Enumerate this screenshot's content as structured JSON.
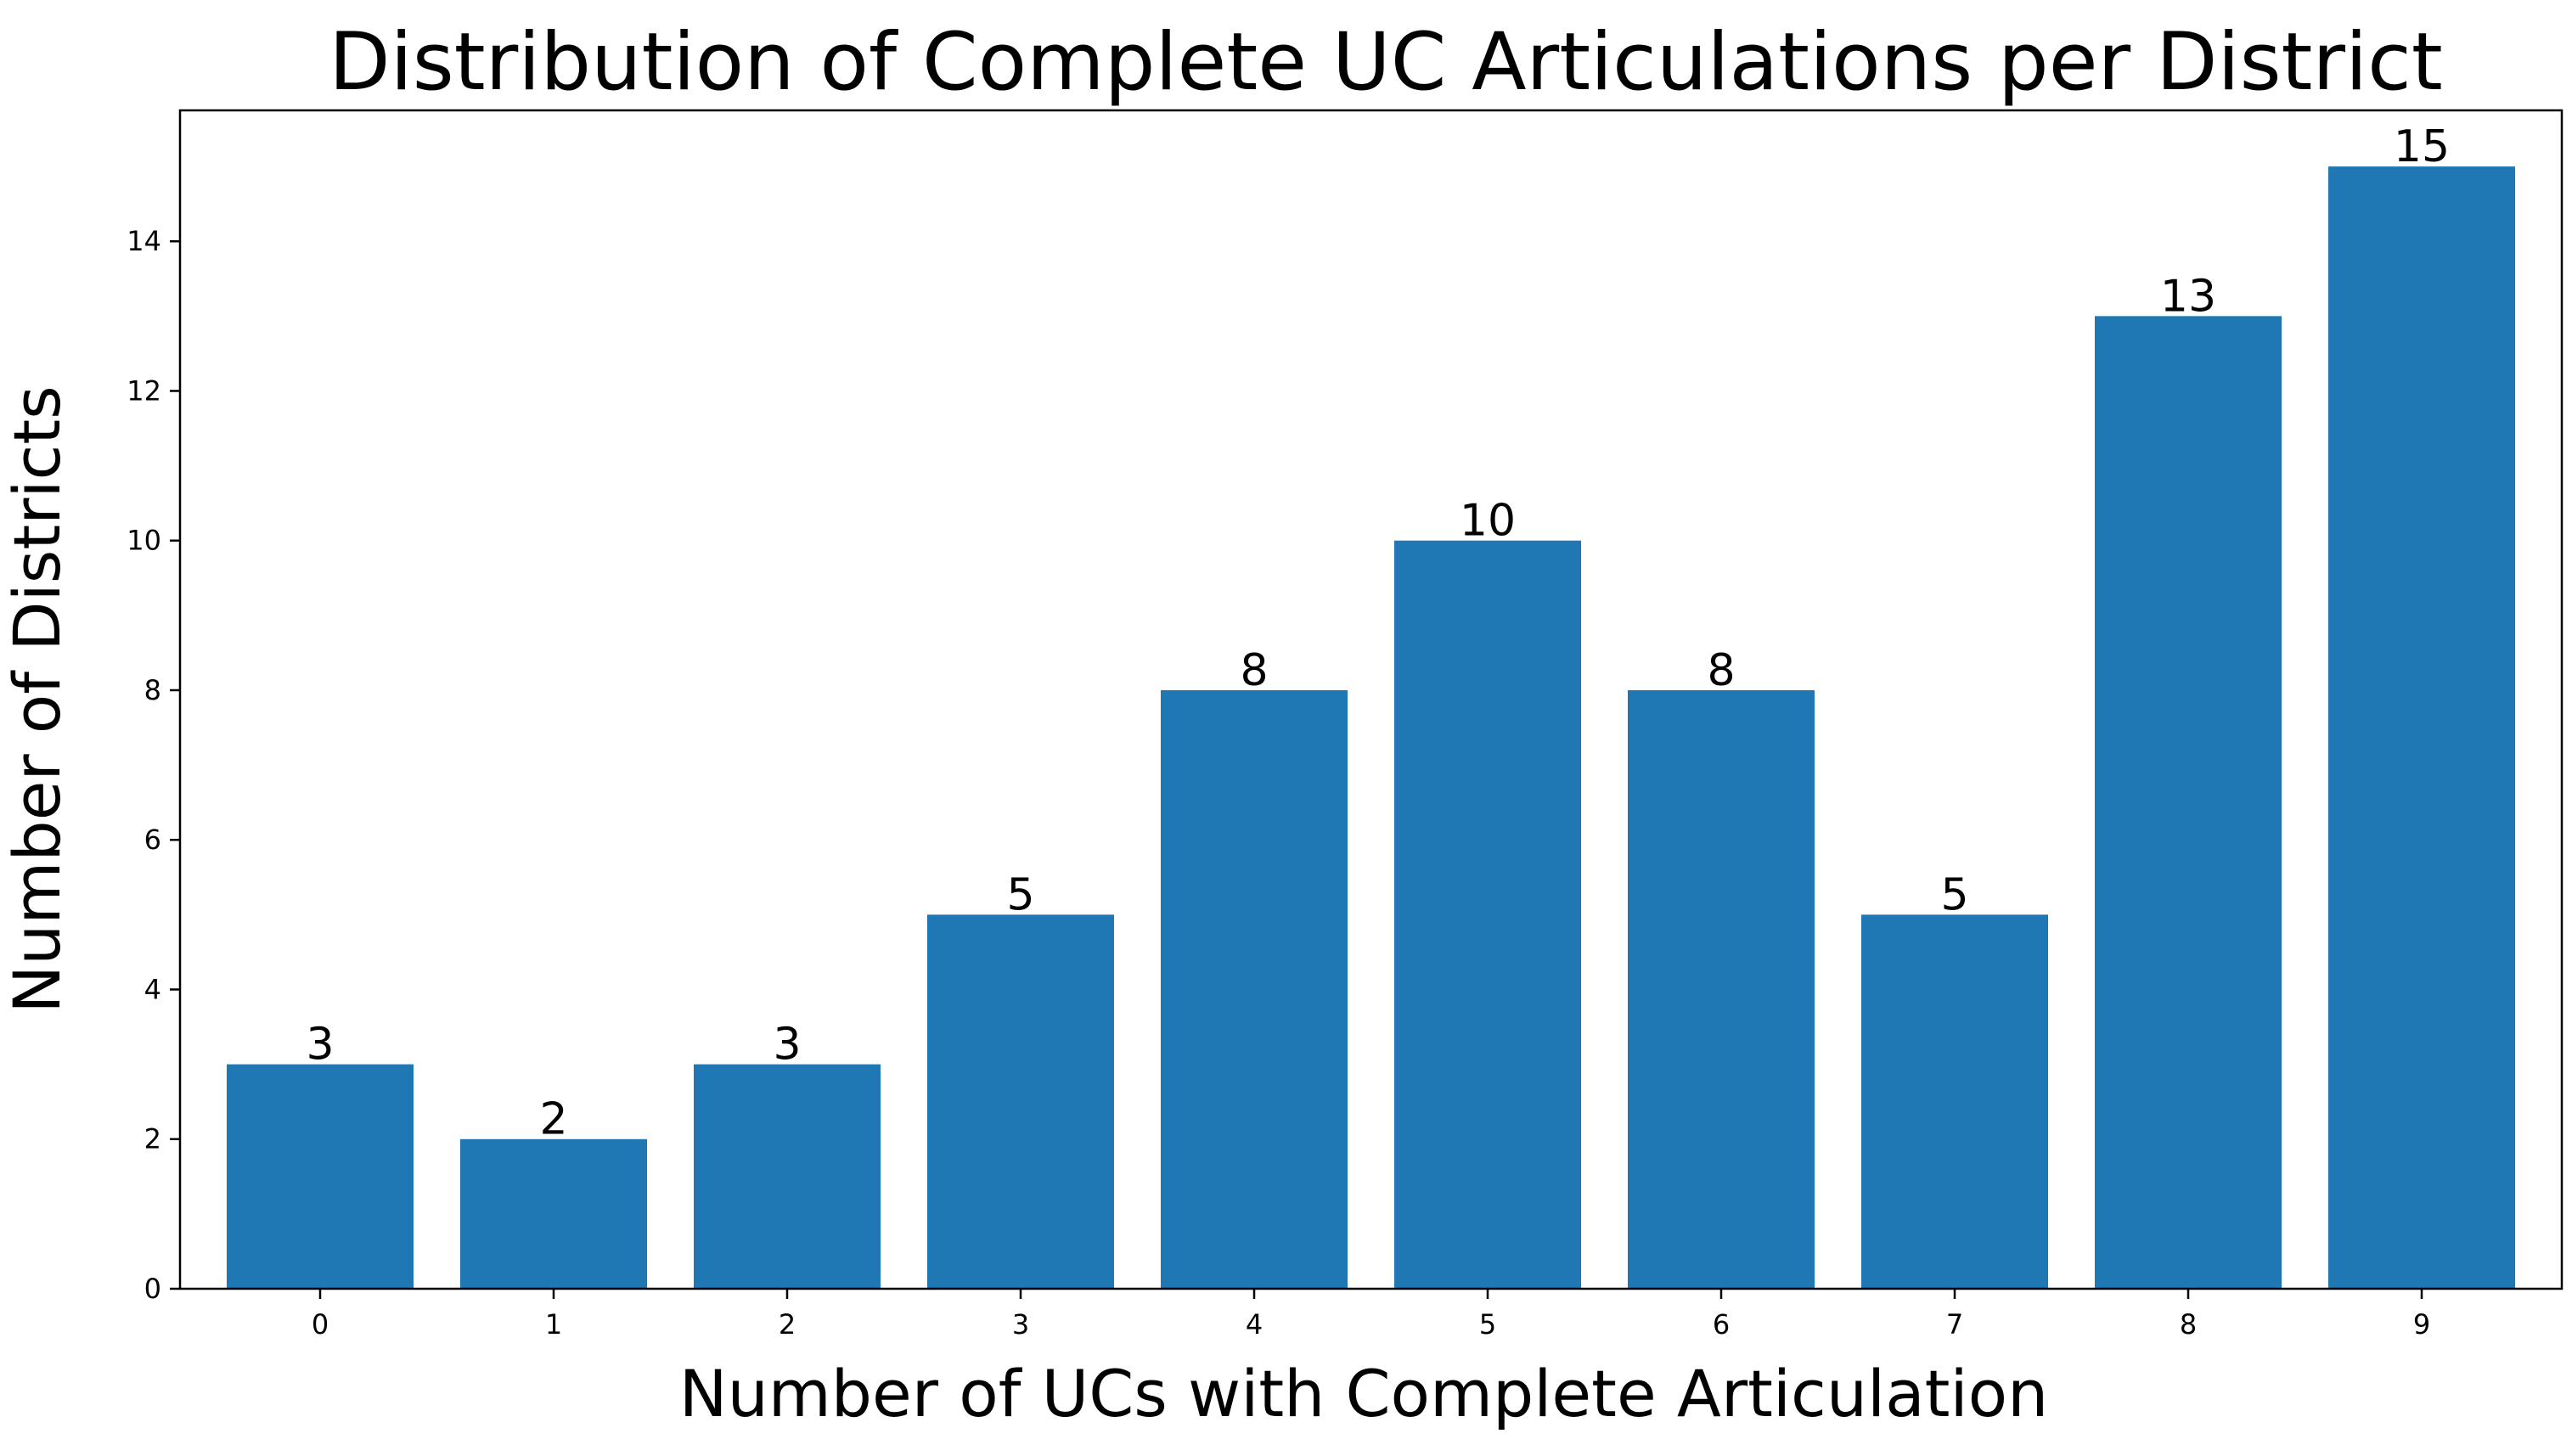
{
  "chart_data": {
    "type": "bar",
    "title": "Distribution of Complete UC Articulations per District",
    "xlabel": "Number of UCs with Complete Articulation",
    "ylabel": "Number of Districts",
    "categories": [
      "0",
      "1",
      "2",
      "3",
      "4",
      "5",
      "6",
      "7",
      "8",
      "9"
    ],
    "values": [
      3,
      2,
      3,
      5,
      8,
      10,
      8,
      5,
      13,
      15
    ],
    "data_labels": [
      "3",
      "2",
      "3",
      "5",
      "8",
      "10",
      "8",
      "5",
      "13",
      "15"
    ],
    "ylim": [
      0,
      15.75
    ],
    "yticks": [
      0,
      2,
      4,
      6,
      8,
      10,
      12,
      14
    ],
    "ytick_labels": [
      "0",
      "2",
      "4",
      "6",
      "8",
      "10",
      "12",
      "14"
    ],
    "bar_color": "#1f77b4",
    "grid": false,
    "legend": "none"
  }
}
